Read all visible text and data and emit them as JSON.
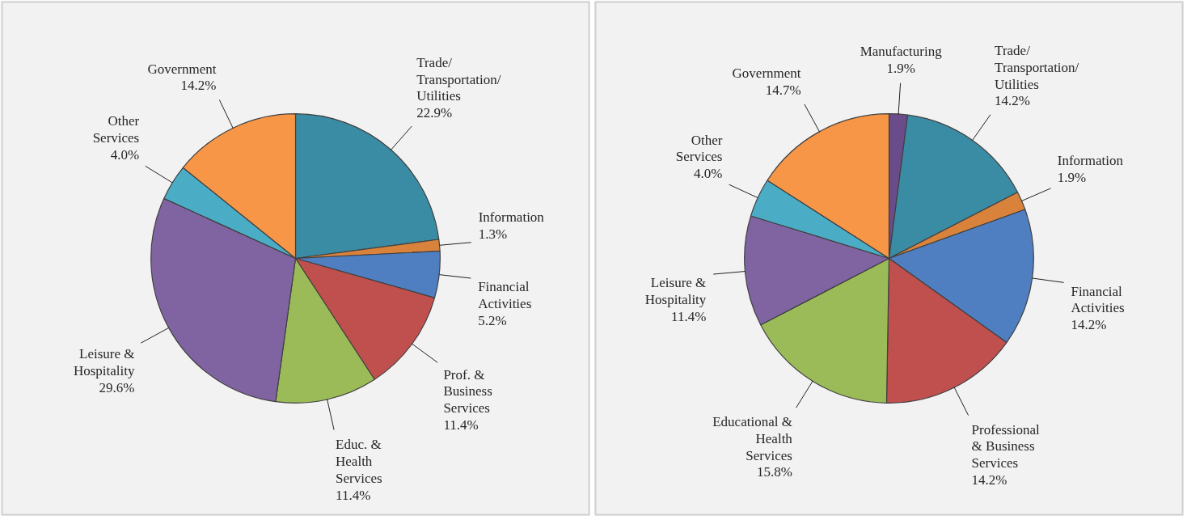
{
  "chart_data": [
    {
      "type": "pie",
      "categories": [
        "Trade/Transportation/Utilities",
        "Information",
        "Financial Activities",
        "Prof. & Business Services",
        "Educ. & Health Services",
        "Leisure & Hospitality",
        "Other Services",
        "Government"
      ],
      "values": [
        22.9,
        1.3,
        5.2,
        11.4,
        11.4,
        29.6,
        4.0,
        14.2
      ],
      "colors": [
        "#3a8ca4",
        "#d9823b",
        "#4f7fc0",
        "#c0504d",
        "#9bbb59",
        "#8064a2",
        "#4bacc6",
        "#f79646"
      ],
      "value_labels": [
        "22.9%",
        "1.3%",
        "5.2%",
        "11.4%",
        "11.4%",
        "29.6%",
        "4.0%",
        "14.2%"
      ]
    },
    {
      "type": "pie",
      "categories": [
        "Manufacturing",
        "Trade/Transportation/Utilities",
        "Information",
        "Financial Activities",
        "Professional & Business Services",
        "Educational & Health Services",
        "Leisure & Hospitality",
        "Other Services",
        "Government"
      ],
      "values": [
        1.9,
        14.2,
        1.9,
        14.2,
        14.2,
        15.8,
        11.4,
        4.0,
        14.7
      ],
      "colors": [
        "#6b4c8a",
        "#3a8ca4",
        "#d9823b",
        "#4f7fc0",
        "#c0504d",
        "#9bbb59",
        "#8064a2",
        "#4bacc6",
        "#f79646"
      ],
      "value_labels": [
        "1.9%",
        "14.2%",
        "1.9%",
        "14.2%",
        "14.2%",
        "15.8%",
        "11.4%",
        "4.0%",
        "14.7%"
      ]
    }
  ]
}
